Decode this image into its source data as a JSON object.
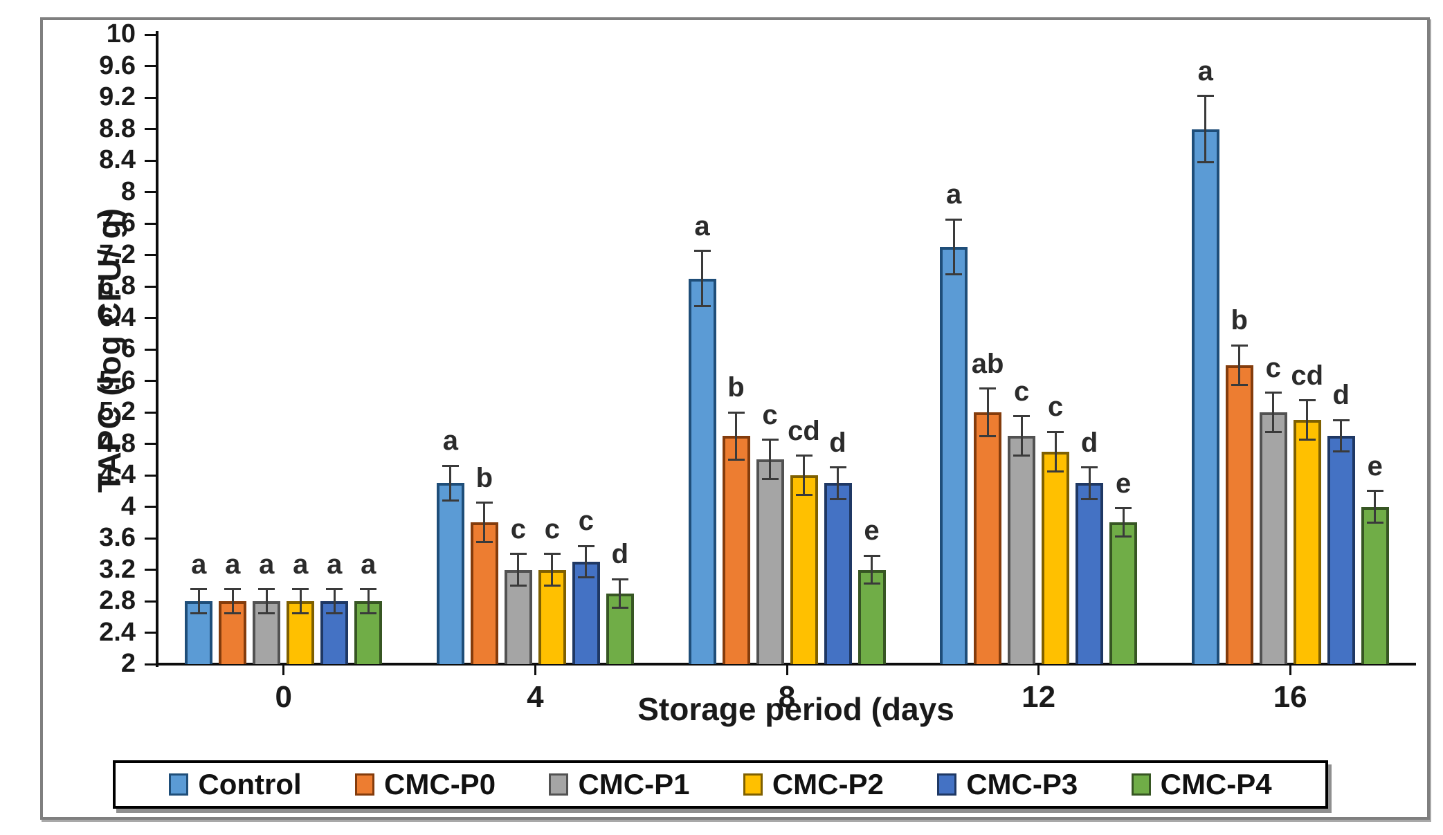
{
  "figure": {
    "ylabel": "TAPC (log CFU/ g)",
    "xlabel": "Storage period (days"
  },
  "chart_data": {
    "type": "bar",
    "title": "",
    "xlabel": "Storage period (days",
    "ylabel": "TAPC (log CFU/ g)",
    "categories": [
      "0",
      "4",
      "8",
      "12",
      "16"
    ],
    "ylim": [
      2,
      10
    ],
    "ytick_step": 0.4,
    "yticks": [
      "2",
      "2.4",
      "2.8",
      "3.2",
      "3.6",
      "4",
      "4.4",
      "4.8",
      "5.2",
      "5.6",
      "6",
      "6.4",
      "6.8",
      "7.2",
      "7.6",
      "8",
      "8.4",
      "8.8",
      "9.2",
      "9.6",
      "10"
    ],
    "grid": false,
    "legend_position": "bottom",
    "error_bars": true,
    "series": [
      {
        "name": "Control",
        "color": "#5B9BD5",
        "border": "#1F4E79",
        "values": [
          2.8,
          4.3,
          6.9,
          7.3,
          8.8
        ],
        "errors": [
          0.15,
          0.22,
          0.35,
          0.35,
          0.42
        ],
        "letters": [
          "a",
          "a",
          "a",
          "a",
          "a"
        ]
      },
      {
        "name": "CMC-P0",
        "color": "#ED7D31",
        "border": "#843C0C",
        "values": [
          2.8,
          3.8,
          4.9,
          5.2,
          5.8
        ],
        "errors": [
          0.15,
          0.25,
          0.3,
          0.3,
          0.25
        ],
        "letters": [
          "a",
          "b",
          "b",
          "ab",
          "b"
        ]
      },
      {
        "name": "CMC-P1",
        "color": "#A5A5A5",
        "border": "#525252",
        "values": [
          2.8,
          3.2,
          4.6,
          4.9,
          5.2
        ],
        "errors": [
          0.15,
          0.2,
          0.25,
          0.25,
          0.25
        ],
        "letters": [
          "a",
          "c",
          "c",
          "c",
          "c"
        ]
      },
      {
        "name": "CMC-P2",
        "color": "#FFC000",
        "border": "#7F6000",
        "values": [
          2.8,
          3.2,
          4.4,
          4.7,
          5.1
        ],
        "errors": [
          0.15,
          0.2,
          0.25,
          0.25,
          0.25
        ],
        "letters": [
          "a",
          "c",
          "cd",
          "c",
          "cd"
        ]
      },
      {
        "name": "CMC-P3",
        "color": "#4472C4",
        "border": "#1F3864",
        "values": [
          2.8,
          3.3,
          4.3,
          4.3,
          4.9
        ],
        "errors": [
          0.15,
          0.2,
          0.2,
          0.2,
          0.2
        ],
        "letters": [
          "a",
          "c",
          "d",
          "d",
          "d"
        ]
      },
      {
        "name": "CMC-P4",
        "color": "#70AD47",
        "border": "#375623",
        "values": [
          2.8,
          2.9,
          3.2,
          3.8,
          4.0
        ],
        "errors": [
          0.15,
          0.18,
          0.18,
          0.18,
          0.2
        ],
        "letters": [
          "a",
          "d",
          "e",
          "e",
          "e"
        ]
      }
    ]
  }
}
